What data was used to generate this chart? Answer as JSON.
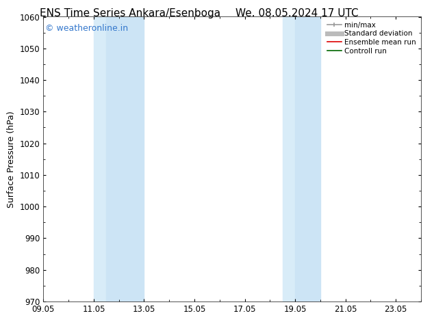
{
  "title_left": "ENS Time Series Ankara/Esenboga",
  "title_right": "We. 08.05.2024 17 UTC",
  "ylabel": "Surface Pressure (hPa)",
  "ylim": [
    970,
    1060
  ],
  "yticks": [
    970,
    980,
    990,
    1000,
    1010,
    1020,
    1030,
    1040,
    1050,
    1060
  ],
  "xlim": [
    9.05,
    24.05
  ],
  "xticks": [
    9.05,
    11.05,
    13.05,
    15.05,
    17.05,
    19.05,
    21.05,
    23.05
  ],
  "xticklabels": [
    "09.05",
    "11.05",
    "13.05",
    "15.05",
    "17.05",
    "19.05",
    "21.05",
    "23.05"
  ],
  "shaded_bands": [
    {
      "xmin": 11.05,
      "xmax": 11.55
    },
    {
      "xmin": 11.55,
      "xmax": 13.05
    },
    {
      "xmin": 18.55,
      "xmax": 19.05
    },
    {
      "xmin": 19.05,
      "xmax": 20.05
    }
  ],
  "shade_color": "#ddeeff",
  "shade_color2": "#cce0f5",
  "watermark_text": "© weatheronline.in",
  "watermark_color": "#3377cc",
  "watermark_fontsize": 9,
  "legend_items": [
    {
      "label": "min/max",
      "color": "#999999",
      "lw": 1.2,
      "style": "line_with_caps"
    },
    {
      "label": "Standard deviation",
      "color": "#bbbbbb",
      "lw": 5,
      "style": "line"
    },
    {
      "label": "Ensemble mean run",
      "color": "#dd0000",
      "lw": 1.2,
      "style": "line"
    },
    {
      "label": "Controll run",
      "color": "#006600",
      "lw": 1.2,
      "style": "line"
    }
  ],
  "bg_color": "#ffffff",
  "title_fontsize": 11,
  "tick_fontsize": 8.5,
  "ylabel_fontsize": 9
}
